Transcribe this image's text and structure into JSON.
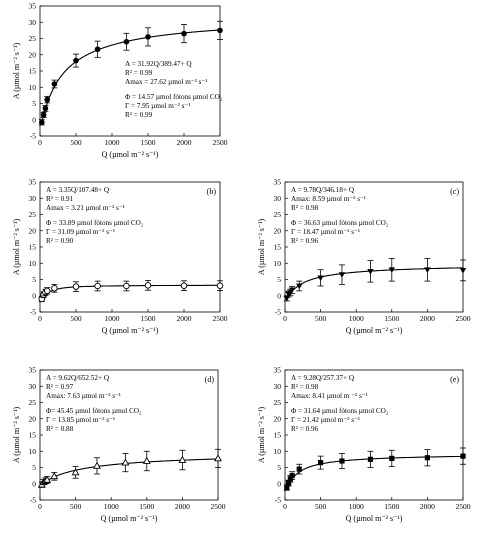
{
  "figure": {
    "chart_data": [
      {
        "type": "scatter",
        "panel_label": "",
        "marker": "circle-filled",
        "xlabel": "Q (µmol m⁻² s⁻¹)",
        "ylabel": "A (µmol m⁻² s⁻¹)",
        "xlim": [
          0,
          2500
        ],
        "ylim": [
          -5,
          35
        ],
        "xticks": [
          0,
          500,
          1000,
          1500,
          2000,
          2500
        ],
        "yticks": [
          -5,
          0,
          5,
          10,
          15,
          20,
          25,
          30,
          35
        ],
        "fit": {
          "a": 31.92,
          "b": 389.47,
          "c": 0
        },
        "series": [
          {
            "x": [
              25,
              50,
              75,
              100,
              200,
              500,
              800,
              1200,
              1500,
              2000,
              2500
            ],
            "y": [
              -0.8,
              1.5,
              3.5,
              6.2,
              11.0,
              18.2,
              21.7,
              24.0,
              25.5,
              26.5,
              27.5
            ],
            "err": [
              0.8,
              0.8,
              0.9,
              1.0,
              1.2,
              2.0,
              2.5,
              2.6,
              2.8,
              2.8,
              2.8
            ]
          }
        ],
        "annotations": [
          "A = 31.92Q/389.47+ Q",
          "R² = 0.99",
          "Amax = 27.62 µmol m⁻² s⁻¹",
          "",
          "Φ = 14.57 µmol fótons µmol  CO₂",
          "Γ = 7.95 µmol m⁻² s⁻¹",
          "R² = 0.99"
        ]
      },
      {
        "type": "scatter",
        "panel_label": "(b)",
        "marker": "circle-open",
        "xlabel": "Q (µmol m⁻² s⁻¹)",
        "ylabel": "A (µmol m⁻² s⁻¹)",
        "xlim": [
          0,
          2500
        ],
        "ylim": [
          -5,
          35
        ],
        "xticks": [
          0,
          500,
          1000,
          1500,
          2000,
          2500
        ],
        "yticks": [
          -5,
          0,
          5,
          10,
          15,
          20,
          25,
          30,
          35
        ],
        "fit": {
          "a": 3.35,
          "b": 107.48,
          "c": 0
        },
        "series": [
          {
            "x": [
              25,
              50,
              75,
              100,
              200,
              500,
              800,
              1200,
              1500,
              2000,
              2500
            ],
            "y": [
              -1.0,
              0.3,
              1.0,
              1.5,
              2.3,
              2.8,
              3.0,
              3.0,
              3.2,
              3.1,
              3.1
            ],
            "err": [
              0.8,
              0.9,
              1.0,
              1.0,
              1.2,
              1.5,
              1.5,
              1.5,
              1.5,
              1.5,
              1.5
            ]
          }
        ],
        "annotations": [
          "A = 3.35Q/107.48+ Q",
          "R² = 0.91",
          "Amax  = 3.21 µmol m⁻² s⁻¹",
          "",
          "Φ = 33.89 µmol fótons µmol  CO₂",
          "Γ = 31.09 µmol m⁻² s⁻¹",
          "R² = 0.90"
        ]
      },
      {
        "type": "scatter",
        "panel_label": "(c)",
        "marker": "triangle-down",
        "xlabel": "Q (µmol m⁻² s⁻¹)",
        "ylabel": "A (µmol m⁻² s⁻¹)",
        "xlim": [
          0,
          2500
        ],
        "ylim": [
          -5,
          35
        ],
        "xticks": [
          0,
          500,
          1000,
          1500,
          2000,
          2500
        ],
        "yticks": [
          -5,
          0,
          5,
          10,
          15,
          20,
          25,
          30,
          35
        ],
        "fit": {
          "a": 9.78,
          "b": 346.18,
          "c": 0
        },
        "series": [
          {
            "x": [
              25,
              50,
              75,
              100,
              200,
              500,
              800,
              1200,
              1500,
              2000,
              2500
            ],
            "y": [
              -0.8,
              0.5,
              1.0,
              1.8,
              3.0,
              5.5,
              6.5,
              7.5,
              8.0,
              8.0,
              7.8
            ],
            "err": [
              0.8,
              0.9,
              1.0,
              1.1,
              1.5,
              2.5,
              3.0,
              3.3,
              3.5,
              3.5,
              3.2
            ]
          }
        ],
        "annotations": [
          "A = 9.78Q/346.18+ Q",
          "Amax: 8.59 µmol m⁻² s⁻¹",
          "R² = 0.98",
          "",
          "Φ = 36.63 µmol fótons µmol  CO₂",
          "Γ = 18.47 µmol m⁻² s⁻¹",
          "R² = 0.96"
        ]
      },
      {
        "type": "scatter",
        "panel_label": "(d)",
        "marker": "triangle-up",
        "xlabel": "Q (µmol m⁻² s⁻¹)",
        "ylabel": "A (µmol m⁻² s⁻¹)",
        "xlim": [
          0,
          2500
        ],
        "ylim": [
          -5,
          35
        ],
        "xticks": [
          0,
          500,
          1000,
          1500,
          2000,
          2500
        ],
        "yticks": [
          -5,
          0,
          5,
          10,
          15,
          20,
          25,
          30,
          35
        ],
        "fit": {
          "a": 9.62,
          "b": 652.52,
          "c": 0
        },
        "series": [
          {
            "x": [
              25,
              50,
              75,
              100,
              200,
              500,
              800,
              1200,
              1500,
              2000,
              2500
            ],
            "y": [
              -0.3,
              0.5,
              0.9,
              1.2,
              2.3,
              3.5,
              5.5,
              6.5,
              7.0,
              7.3,
              7.8
            ],
            "err": [
              0.8,
              0.8,
              0.9,
              1.0,
              1.2,
              1.8,
              2.5,
              2.8,
              3.0,
              3.0,
              2.8
            ]
          }
        ],
        "annotations": [
          "A = 9.62Q/652.52+ Q",
          "R² = 0.97",
          "Amax: 7.63 µmol m⁻² s⁻¹",
          "",
          "Φ= 45.45 µmol fótons µmol  CO₂",
          "Γ =  13.85 µmol m⁻² s⁻¹",
          "R² = 0.88"
        ]
      },
      {
        "type": "scatter",
        "panel_label": "(e)",
        "marker": "square",
        "xlabel": "Q (µmol m⁻² s⁻¹)",
        "ylabel": "A (µmol m⁻² s⁻¹)",
        "xlim": [
          0,
          2500
        ],
        "ylim": [
          -5,
          35
        ],
        "xticks": [
          0,
          500,
          1000,
          1500,
          2000,
          2500
        ],
        "yticks": [
          -5,
          0,
          5,
          10,
          15,
          20,
          25,
          30,
          35
        ],
        "fit": {
          "a": 9.28,
          "b": 257.37,
          "c": 0
        },
        "series": [
          {
            "x": [
              25,
              50,
              75,
              100,
              200,
              500,
              800,
              1200,
              1500,
              2000,
              2500
            ],
            "y": [
              -1.2,
              0.2,
              1.5,
              2.5,
              4.5,
              6.5,
              7.0,
              7.5,
              7.8,
              8.0,
              8.5
            ],
            "err": [
              0.8,
              0.9,
              1.0,
              1.2,
              1.5,
              2.0,
              2.3,
              2.5,
              2.5,
              2.5,
              2.5
            ]
          }
        ],
        "annotations": [
          "A = 9.28Q/257.37+ Q",
          "R² = 0.98",
          "Amax: 8.41 µmol m ⁻² s⁻¹",
          "",
          "Φ = 31.64 µmol fótons µmol  CO₂",
          "Γ = 21.42 µmol m⁻² s⁻¹",
          "R² = 0.96"
        ]
      }
    ]
  }
}
